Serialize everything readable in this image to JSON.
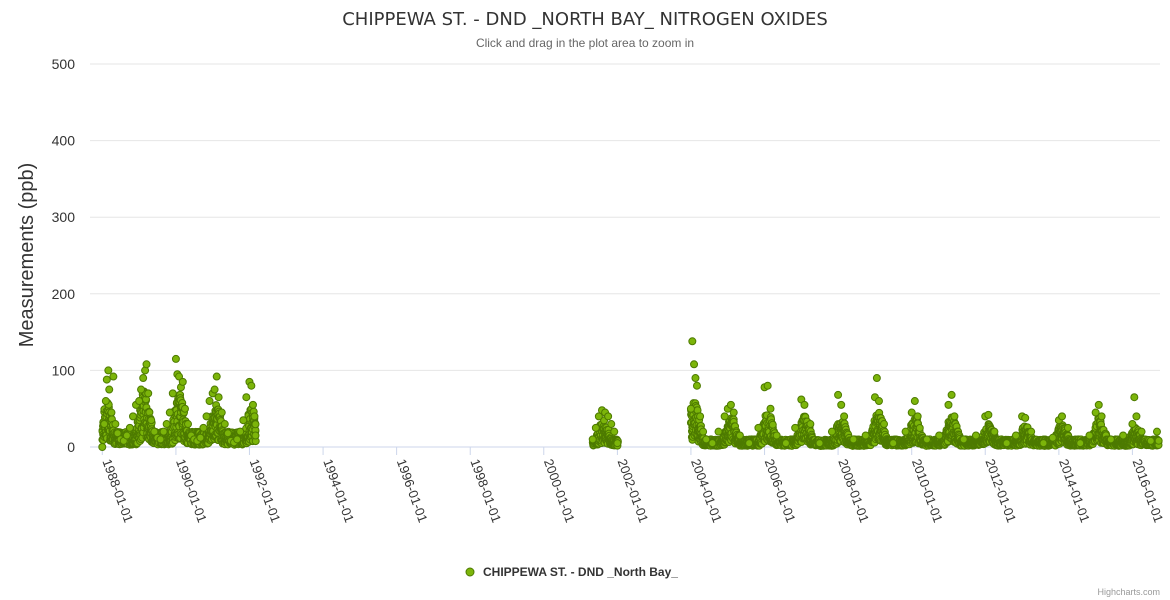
{
  "chart_data": {
    "type": "scatter",
    "title": "CHIPPEWA ST. - DND _NORTH BAY_ NITROGEN OXIDES",
    "subtitle": "Click and drag in the plot area to zoom in",
    "ylabel": "Measurements (ppb)",
    "xlabel": "",
    "x_type": "date",
    "xlim": [
      "1987-09-01",
      "2016-10-01"
    ],
    "ylim": [
      0,
      500
    ],
    "y_ticks": [
      "0",
      "100",
      "200",
      "300",
      "400",
      "500"
    ],
    "x_ticks": [
      "1988-01-01",
      "1990-01-01",
      "1992-01-01",
      "1994-01-01",
      "1996-01-01",
      "1998-01-01",
      "2000-01-01",
      "2002-01-01",
      "2004-01-01",
      "2006-01-01",
      "2008-01-01",
      "2010-01-01",
      "2012-01-01",
      "2014-01-01",
      "2016-01-01"
    ],
    "grid": true,
    "legend_position": "bottom-center",
    "series": [
      {
        "name": "CHIPPEWA ST. - DND _North Bay_",
        "color": "#7cb50a",
        "border_color": "#4d7a00",
        "points": [
          [
            "1988-01-01",
            0
          ],
          [
            "1988-01-20",
            30
          ],
          [
            "1988-02-05",
            60
          ],
          [
            "1988-02-15",
            88
          ],
          [
            "1988-03-01",
            100
          ],
          [
            "1988-03-10",
            75
          ],
          [
            "1988-04-01",
            45
          ],
          [
            "1988-04-20",
            92
          ],
          [
            "1988-05-10",
            30
          ],
          [
            "1988-06-01",
            18
          ],
          [
            "1988-07-01",
            10
          ],
          [
            "1988-08-01",
            8
          ],
          [
            "1988-09-01",
            15
          ],
          [
            "1988-10-01",
            25
          ],
          [
            "1988-11-01",
            40
          ],
          [
            "1988-12-01",
            55
          ],
          [
            "1989-01-01",
            60
          ],
          [
            "1989-01-20",
            75
          ],
          [
            "1989-02-10",
            90
          ],
          [
            "1989-03-01",
            100
          ],
          [
            "1989-03-15",
            108
          ],
          [
            "1989-04-01",
            70
          ],
          [
            "1989-05-01",
            35
          ],
          [
            "1989-06-01",
            20
          ],
          [
            "1989-07-01",
            12
          ],
          [
            "1989-08-01",
            10
          ],
          [
            "1989-09-01",
            20
          ],
          [
            "1989-10-01",
            30
          ],
          [
            "1989-11-01",
            45
          ],
          [
            "1989-12-01",
            70
          ],
          [
            "1990-01-01",
            115
          ],
          [
            "1990-01-15",
            95
          ],
          [
            "1990-02-01",
            92
          ],
          [
            "1990-02-20",
            78
          ],
          [
            "1990-03-10",
            85
          ],
          [
            "1990-04-01",
            50
          ],
          [
            "1990-05-01",
            30
          ],
          [
            "1990-06-01",
            15
          ],
          [
            "1990-07-01",
            10
          ],
          [
            "1990-08-01",
            8
          ],
          [
            "1990-09-01",
            12
          ],
          [
            "1990-10-01",
            25
          ],
          [
            "1990-11-01",
            40
          ],
          [
            "1990-12-01",
            60
          ],
          [
            "1991-01-01",
            70
          ],
          [
            "1991-01-20",
            75
          ],
          [
            "1991-02-10",
            92
          ],
          [
            "1991-03-01",
            65
          ],
          [
            "1991-04-01",
            45
          ],
          [
            "1991-05-01",
            30
          ],
          [
            "1991-06-01",
            18
          ],
          [
            "1991-07-01",
            8
          ],
          [
            "1991-08-01",
            6
          ],
          [
            "1991-09-01",
            10
          ],
          [
            "1991-10-01",
            20
          ],
          [
            "1991-11-01",
            35
          ],
          [
            "1991-12-01",
            65
          ],
          [
            "1992-01-01",
            85
          ],
          [
            "1992-01-20",
            80
          ],
          [
            "1992-02-05",
            55
          ],
          [
            "1992-02-20",
            40
          ],
          [
            "1992-03-01",
            15
          ],
          [
            "2001-05-01",
            10
          ],
          [
            "2001-06-01",
            25
          ],
          [
            "2001-07-01",
            40
          ],
          [
            "2001-08-01",
            48
          ],
          [
            "2001-09-01",
            45
          ],
          [
            "2001-10-01",
            40
          ],
          [
            "2001-11-01",
            30
          ],
          [
            "2001-12-01",
            20
          ],
          [
            "2002-01-01",
            5
          ],
          [
            "2004-01-01",
            50
          ],
          [
            "2004-01-15",
            138
          ],
          [
            "2004-02-01",
            108
          ],
          [
            "2004-02-15",
            90
          ],
          [
            "2004-03-01",
            80
          ],
          [
            "2004-04-01",
            40
          ],
          [
            "2004-05-01",
            20
          ],
          [
            "2004-06-01",
            10
          ],
          [
            "2004-08-01",
            5
          ],
          [
            "2004-10-01",
            20
          ],
          [
            "2004-12-01",
            40
          ],
          [
            "2005-01-01",
            50
          ],
          [
            "2005-02-01",
            55
          ],
          [
            "2005-03-01",
            45
          ],
          [
            "2005-05-01",
            15
          ],
          [
            "2005-08-01",
            5
          ],
          [
            "2005-11-01",
            25
          ],
          [
            "2006-01-01",
            78
          ],
          [
            "2006-02-01",
            80
          ],
          [
            "2006-03-01",
            50
          ],
          [
            "2006-05-01",
            15
          ],
          [
            "2006-08-01",
            5
          ],
          [
            "2006-11-01",
            25
          ],
          [
            "2007-01-01",
            62
          ],
          [
            "2007-02-01",
            55
          ],
          [
            "2007-04-01",
            30
          ],
          [
            "2007-07-01",
            5
          ],
          [
            "2007-11-01",
            20
          ],
          [
            "2008-01-01",
            68
          ],
          [
            "2008-02-01",
            55
          ],
          [
            "2008-03-01",
            40
          ],
          [
            "2008-06-01",
            10
          ],
          [
            "2008-10-01",
            15
          ],
          [
            "2009-01-01",
            65
          ],
          [
            "2009-01-20",
            90
          ],
          [
            "2009-02-10",
            60
          ],
          [
            "2009-04-01",
            30
          ],
          [
            "2009-07-01",
            5
          ],
          [
            "2009-11-01",
            20
          ],
          [
            "2010-01-01",
            45
          ],
          [
            "2010-02-01",
            60
          ],
          [
            "2010-03-01",
            40
          ],
          [
            "2010-06-01",
            10
          ],
          [
            "2010-10-01",
            15
          ],
          [
            "2011-01-01",
            55
          ],
          [
            "2011-02-01",
            68
          ],
          [
            "2011-03-01",
            40
          ],
          [
            "2011-06-01",
            10
          ],
          [
            "2011-10-01",
            15
          ],
          [
            "2012-01-01",
            40
          ],
          [
            "2012-02-01",
            42
          ],
          [
            "2012-04-01",
            20
          ],
          [
            "2012-08-01",
            5
          ],
          [
            "2012-11-01",
            15
          ],
          [
            "2013-01-01",
            40
          ],
          [
            "2013-02-01",
            38
          ],
          [
            "2013-04-01",
            20
          ],
          [
            "2013-08-01",
            5
          ],
          [
            "2013-11-01",
            12
          ],
          [
            "2014-01-01",
            35
          ],
          [
            "2014-02-01",
            40
          ],
          [
            "2014-04-01",
            25
          ],
          [
            "2014-08-01",
            5
          ],
          [
            "2014-11-01",
            15
          ],
          [
            "2015-01-01",
            45
          ],
          [
            "2015-02-01",
            55
          ],
          [
            "2015-03-01",
            40
          ],
          [
            "2015-06-01",
            10
          ],
          [
            "2015-10-01",
            15
          ],
          [
            "2016-01-01",
            30
          ],
          [
            "2016-01-20",
            65
          ],
          [
            "2016-02-10",
            40
          ],
          [
            "2016-04-01",
            20
          ],
          [
            "2016-07-01",
            8
          ],
          [
            "2016-09-01",
            20
          ]
        ],
        "dense_segments": [
          {
            "start": "1988-01-01",
            "end": "1992-03-01",
            "base": 20,
            "peaks": [
              [
                "1988-02-20",
                60
              ],
              [
                "1989-02-20",
                75
              ],
              [
                "1990-02-01",
                70
              ],
              [
                "1991-02-01",
                55
              ],
              [
                "1992-01-20",
                50
              ]
            ]
          },
          {
            "start": "2001-05-01",
            "end": "2002-01-01",
            "base": 10,
            "peaks": [
              [
                "2001-08-15",
                35
              ]
            ]
          },
          {
            "start": "2004-01-01",
            "end": "2016-09-15",
            "base": 10,
            "peaks": [
              [
                "2004-02-01",
                60
              ],
              [
                "2005-02-01",
                40
              ],
              [
                "2006-02-01",
                45
              ],
              [
                "2007-02-01",
                40
              ],
              [
                "2008-02-01",
                38
              ],
              [
                "2009-02-01",
                45
              ],
              [
                "2010-02-01",
                38
              ],
              [
                "2011-02-01",
                40
              ],
              [
                "2012-02-01",
                30
              ],
              [
                "2013-02-01",
                28
              ],
              [
                "2014-02-01",
                30
              ],
              [
                "2015-02-01",
                38
              ],
              [
                "2016-02-01",
                25
              ]
            ]
          }
        ]
      }
    ]
  },
  "credit": "Highcharts.com"
}
